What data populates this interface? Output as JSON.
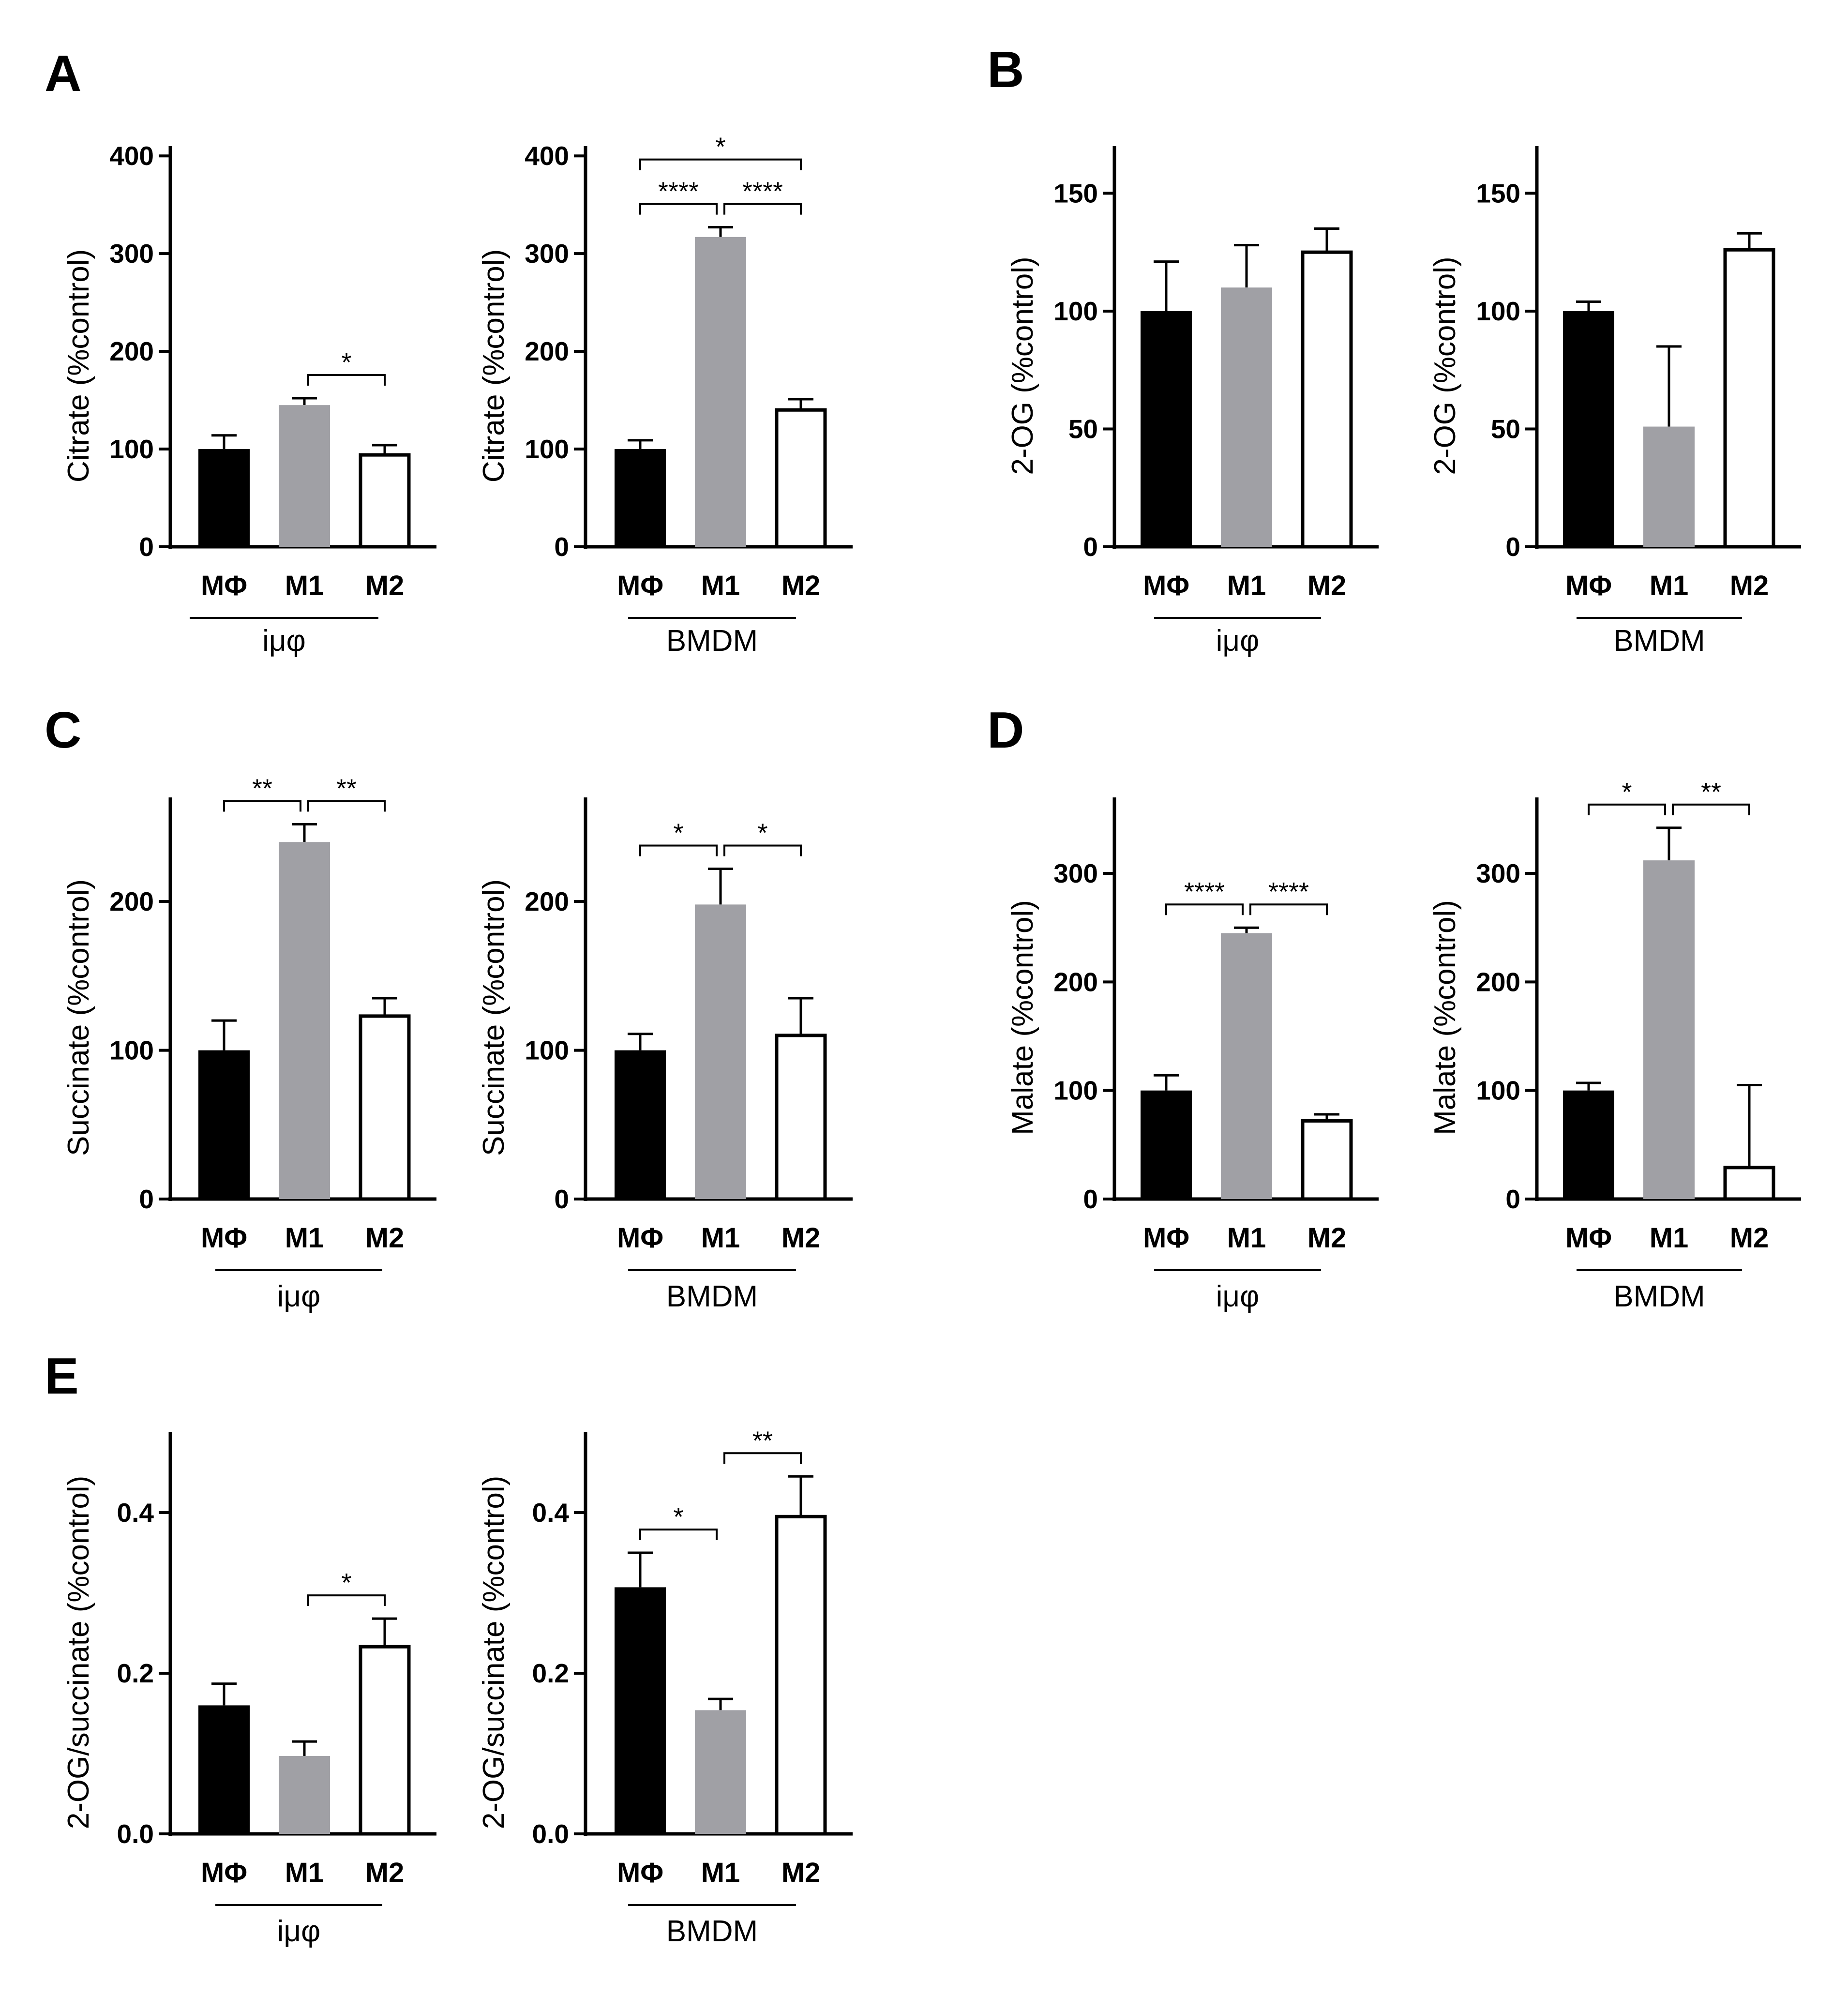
{
  "panel_labels": {
    "A": "A",
    "B": "B",
    "C": "C",
    "D": "D",
    "E": "E"
  },
  "colors": {
    "MΦ": "#000000",
    "M1": "#a0a0a5",
    "M2": "#ffffff"
  },
  "chart_data": [
    {
      "id": "A1",
      "panel": "A",
      "type": "bar",
      "ylabel": "Citrate (%control)",
      "group": "iμφ",
      "categories": [
        "MΦ",
        "M1",
        "M2"
      ],
      "values": [
        100,
        145,
        94
      ],
      "errors": [
        14,
        7,
        10
      ],
      "ylim": [
        0,
        410
      ],
      "yticks": [
        0,
        100,
        200,
        300,
        400
      ],
      "tick_labels": [
        "0",
        "100",
        "200",
        "300",
        "400"
      ],
      "significance": [
        {
          "from": 1,
          "to": 2,
          "label": "*"
        }
      ]
    },
    {
      "id": "A2",
      "panel": "A",
      "type": "bar",
      "ylabel": "Citrate (%control)",
      "group": "BMDM",
      "categories": [
        "MΦ",
        "M1",
        "M2"
      ],
      "values": [
        100,
        317,
        140
      ],
      "errors": [
        9,
        10,
        11
      ],
      "ylim": [
        0,
        410
      ],
      "yticks": [
        0,
        100,
        200,
        300,
        400
      ],
      "tick_labels": [
        "0",
        "100",
        "200",
        "300",
        "400"
      ],
      "significance": [
        {
          "from": 0,
          "to": 1,
          "label": "****"
        },
        {
          "from": 1,
          "to": 2,
          "label": "****"
        },
        {
          "from": 0,
          "to": 2,
          "label": "*"
        }
      ]
    },
    {
      "id": "B1",
      "panel": "B",
      "type": "bar",
      "ylabel": "2-OG (%control)",
      "group": "iμφ",
      "categories": [
        "MΦ",
        "M1",
        "M2"
      ],
      "values": [
        100,
        110,
        125
      ],
      "errors": [
        21,
        18,
        10
      ],
      "ylim": [
        0,
        170
      ],
      "yticks": [
        0,
        50,
        100,
        150
      ],
      "tick_labels": [
        "0",
        "50",
        "100",
        "150"
      ],
      "significance": []
    },
    {
      "id": "B2",
      "panel": "B",
      "type": "bar",
      "ylabel": "2-OG (%control)",
      "group": "BMDM",
      "categories": [
        "MΦ",
        "M1",
        "M2"
      ],
      "values": [
        100,
        51,
        126
      ],
      "errors": [
        4,
        34,
        7
      ],
      "ylim": [
        0,
        170
      ],
      "yticks": [
        0,
        50,
        100,
        150
      ],
      "tick_labels": [
        "0",
        "50",
        "100",
        "150"
      ],
      "significance": []
    },
    {
      "id": "C1",
      "panel": "C",
      "type": "bar",
      "ylabel": "Succinate (%control)",
      "group": "iμφ",
      "categories": [
        "MΦ",
        "M1",
        "M2"
      ],
      "values": [
        100,
        240,
        123
      ],
      "errors": [
        20,
        12,
        12
      ],
      "ylim": [
        0,
        270
      ],
      "yticks": [
        0,
        100,
        200
      ],
      "tick_labels": [
        "0",
        "100",
        "200"
      ],
      "significance": [
        {
          "from": 0,
          "to": 1,
          "label": "**"
        },
        {
          "from": 1,
          "to": 2,
          "label": "**"
        }
      ]
    },
    {
      "id": "C2",
      "panel": "C",
      "type": "bar",
      "ylabel": "Succinate (%control)",
      "group": "BMDM",
      "categories": [
        "MΦ",
        "M1",
        "M2"
      ],
      "values": [
        100,
        198,
        110
      ],
      "errors": [
        11,
        24,
        25
      ],
      "ylim": [
        0,
        270
      ],
      "yticks": [
        0,
        100,
        200
      ],
      "tick_labels": [
        "0",
        "100",
        "200"
      ],
      "significance": [
        {
          "from": 0,
          "to": 1,
          "label": "*"
        },
        {
          "from": 1,
          "to": 2,
          "label": "*"
        }
      ]
    },
    {
      "id": "D1",
      "panel": "D",
      "type": "bar",
      "ylabel": "Malate (%control)",
      "group": "iμφ",
      "categories": [
        "MΦ",
        "M1",
        "M2"
      ],
      "values": [
        100,
        245,
        72
      ],
      "errors": [
        14,
        5,
        6
      ],
      "ylim": [
        0,
        370
      ],
      "yticks": [
        0,
        100,
        200,
        300
      ],
      "tick_labels": [
        "0",
        "100",
        "200",
        "300"
      ],
      "significance": [
        {
          "from": 0,
          "to": 1,
          "label": "****"
        },
        {
          "from": 1,
          "to": 2,
          "label": "****"
        }
      ]
    },
    {
      "id": "D2",
      "panel": "D",
      "type": "bar",
      "ylabel": "Malate (%control)",
      "group": "BMDM",
      "categories": [
        "MΦ",
        "M1",
        "M2"
      ],
      "values": [
        100,
        312,
        29
      ],
      "errors": [
        7,
        30,
        76
      ],
      "ylim": [
        0,
        370
      ],
      "yticks": [
        0,
        100,
        200,
        300
      ],
      "tick_labels": [
        "0",
        "100",
        "200",
        "300"
      ],
      "significance": [
        {
          "from": 0,
          "to": 1,
          "label": "*"
        },
        {
          "from": 1,
          "to": 2,
          "label": "**"
        }
      ]
    },
    {
      "id": "E1",
      "panel": "E",
      "type": "bar",
      "ylabel": "2-OG/succinate (%control)",
      "group": "iμφ",
      "categories": [
        "MΦ",
        "M1",
        "M2"
      ],
      "values": [
        0.16,
        0.097,
        0.233
      ],
      "errors": [
        0.027,
        0.018,
        0.035
      ],
      "ylim": [
        0,
        0.5
      ],
      "yticks": [
        0,
        0.2,
        0.4
      ],
      "tick_labels": [
        "0.0",
        "0.2",
        "0.4"
      ],
      "significance": [
        {
          "from": 1,
          "to": 2,
          "label": "*"
        }
      ]
    },
    {
      "id": "E2",
      "panel": "E",
      "type": "bar",
      "ylabel": "2-OG/succinate (%control)",
      "group": "BMDM",
      "categories": [
        "MΦ",
        "M1",
        "M2"
      ],
      "values": [
        0.307,
        0.154,
        0.395
      ],
      "errors": [
        0.043,
        0.014,
        0.05
      ],
      "ylim": [
        0,
        0.5
      ],
      "yticks": [
        0,
        0.2,
        0.4
      ],
      "tick_labels": [
        "0.0",
        "0.2",
        "0.4"
      ],
      "significance": [
        {
          "from": 0,
          "to": 1,
          "label": "*"
        },
        {
          "from": 1,
          "to": 2,
          "label": "**"
        }
      ]
    }
  ]
}
